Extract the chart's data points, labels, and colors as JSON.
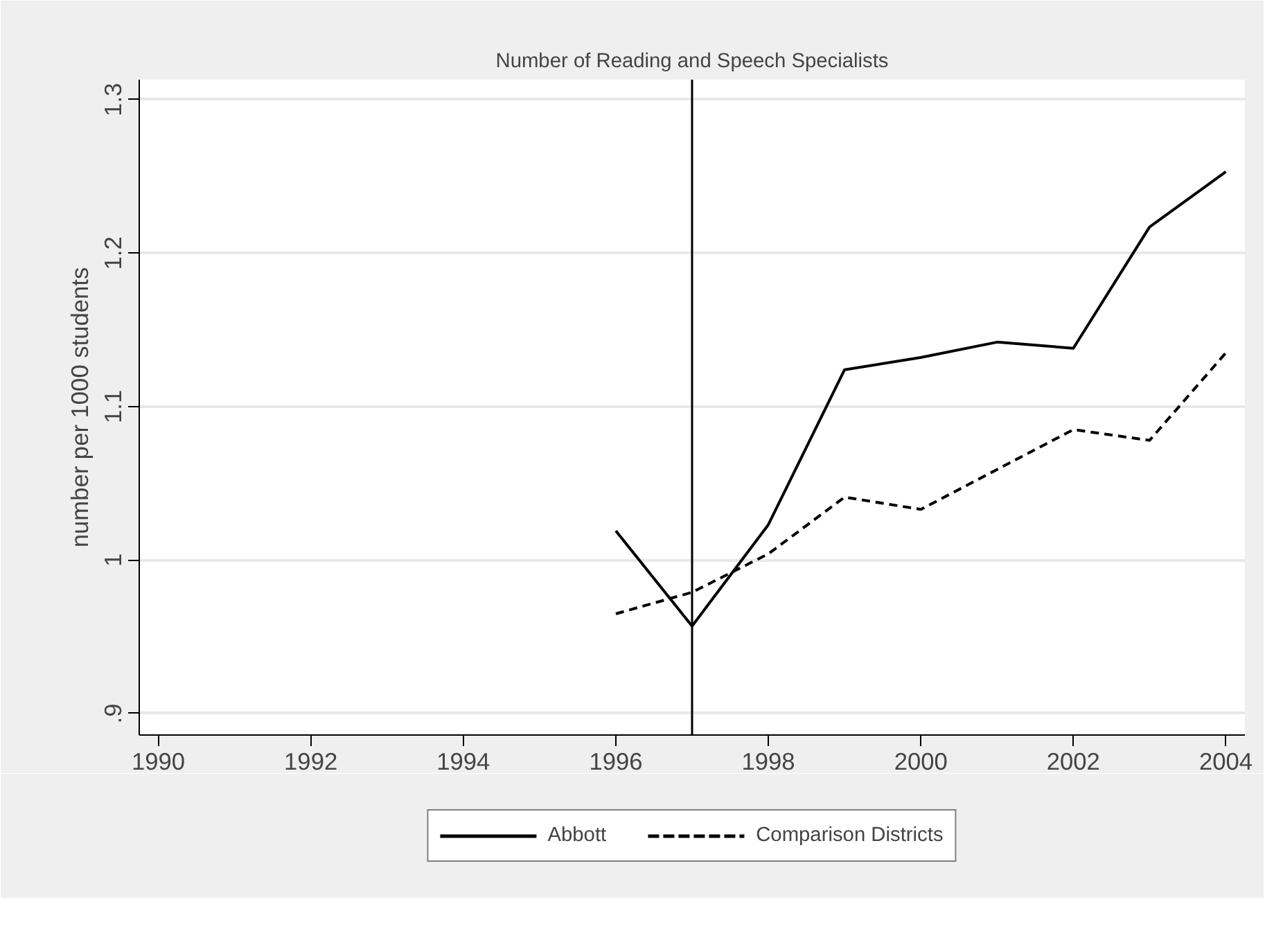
{
  "chart_data": {
    "type": "line",
    "title": "Number of Reading and Speech Specialists",
    "ylabel": "number per 1000 students",
    "x": [
      1996,
      1997,
      1998,
      1999,
      2000,
      2001,
      2002,
      2003,
      2004
    ],
    "series": [
      {
        "name": "Abbott",
        "color": "#000000",
        "line_style": "solid",
        "values": [
          1.019,
          0.957,
          1.023,
          1.124,
          1.132,
          1.142,
          1.138,
          1.217,
          1.253
        ]
      },
      {
        "name": "Comparison Districts",
        "color": "#000000",
        "line_style": "dashed",
        "values": [
          0.965,
          0.979,
          1.004,
          1.041,
          1.033,
          1.059,
          1.085,
          1.078,
          1.135
        ]
      }
    ],
    "xlim": [
      1989.75,
      2004.25
    ],
    "xticks": [
      1990,
      1992,
      1994,
      1996,
      1998,
      2000,
      2002,
      2004
    ],
    "ylim": [
      0.886,
      1.313
    ],
    "yticks": [
      {
        "value": 0.9,
        "label": ".9"
      },
      {
        "value": 1.0,
        "label": "1"
      },
      1.1,
      1.2,
      1.3
    ],
    "ref_lines": [
      {
        "axis": "x",
        "value": 1997,
        "color": "#000000"
      }
    ],
    "grid": "y",
    "legend": "bottom",
    "marker": "none"
  }
}
